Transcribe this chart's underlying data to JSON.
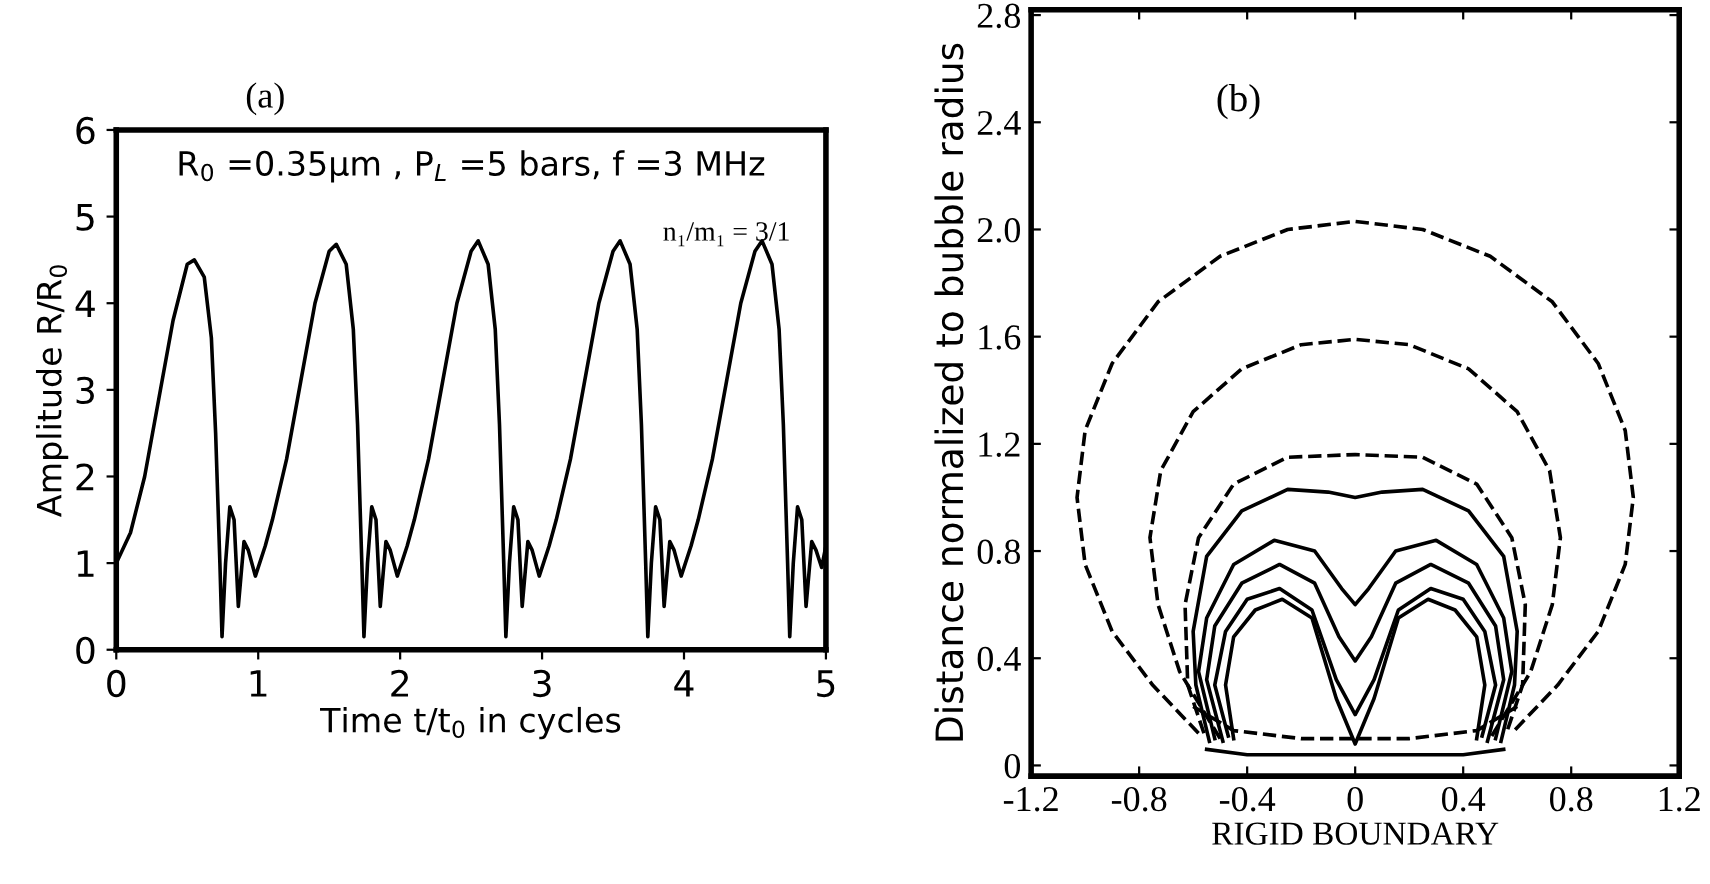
{
  "chart_data": [
    {
      "type": "line",
      "xlabel": "Time t/t$_{0}$ in cycles",
      "ylabel": "Amplitude R/R$_{0}$",
      "annotations": [
        "(a)",
        "R$_{0}$ =0.35μm , P$_{L}$ =5 bars, f =3 MHz",
        "n₁/m₁ = 3/1"
      ],
      "xlim": [
        0,
        5
      ],
      "ylim": [
        0,
        6
      ],
      "xticks": [
        0,
        1,
        2,
        3,
        4,
        5
      ],
      "yticks": [
        0,
        1,
        2,
        3,
        4,
        5,
        6
      ],
      "grid": false,
      "line_style": "solid",
      "series": [
        {
          "color": "#000000",
          "x": [
            0,
            0.1,
            0.2,
            0.3,
            0.4,
            0.5,
            0.55,
            0.62,
            0.67,
            0.7,
            0.73,
            0.745,
            0.77,
            0.8,
            0.83,
            0.86,
            0.9,
            0.93,
            0.98,
            1.05,
            1.1,
            1.2,
            1.3,
            1.4,
            1.5,
            1.55,
            1.62,
            1.67,
            1.7,
            1.73,
            1.745,
            1.77,
            1.8,
            1.83,
            1.86,
            1.9,
            1.93,
            1.98,
            2.05,
            2.1,
            2.2,
            2.3,
            2.4,
            2.5,
            2.55,
            2.62,
            2.67,
            2.7,
            2.73,
            2.745,
            2.77,
            2.8,
            2.83,
            2.86,
            2.9,
            2.93,
            2.98,
            3.05,
            3.1,
            3.2,
            3.3,
            3.4,
            3.5,
            3.55,
            3.62,
            3.67,
            3.7,
            3.73,
            3.745,
            3.77,
            3.8,
            3.83,
            3.86,
            3.9,
            3.93,
            3.98,
            4.05,
            4.1,
            4.2,
            4.3,
            4.4,
            4.5,
            4.55,
            4.62,
            4.67,
            4.7,
            4.73,
            4.745,
            4.77,
            4.8,
            4.83,
            4.86,
            4.9,
            4.93,
            4.97,
            5.0
          ],
          "values": [
            1.0,
            1.35,
            2.0,
            2.9,
            3.8,
            4.45,
            4.5,
            4.3,
            3.6,
            2.5,
            1.0,
            0.15,
            1.0,
            1.65,
            1.5,
            0.5,
            1.25,
            1.15,
            0.85,
            1.2,
            1.5,
            2.2,
            3.1,
            4.0,
            4.6,
            4.68,
            4.45,
            3.7,
            2.6,
            1.0,
            0.15,
            1.0,
            1.65,
            1.5,
            0.5,
            1.25,
            1.15,
            0.85,
            1.2,
            1.5,
            2.2,
            3.1,
            4.0,
            4.6,
            4.72,
            4.45,
            3.7,
            2.6,
            1.0,
            0.15,
            1.0,
            1.65,
            1.5,
            0.5,
            1.25,
            1.15,
            0.85,
            1.2,
            1.5,
            2.2,
            3.1,
            4.0,
            4.6,
            4.72,
            4.45,
            3.7,
            2.6,
            1.0,
            0.15,
            1.0,
            1.65,
            1.5,
            0.5,
            1.25,
            1.15,
            0.85,
            1.2,
            1.5,
            2.2,
            3.1,
            4.0,
            4.6,
            4.72,
            4.45,
            3.7,
            2.6,
            1.0,
            0.15,
            1.0,
            1.65,
            1.5,
            0.5,
            1.25,
            1.15,
            0.95,
            1.2
          ]
        }
      ]
    },
    {
      "type": "line",
      "xlabel": "RIGID BOUNDARY",
      "ylabel": "Distance normalized to bubble radius",
      "annotations": [
        "(b)"
      ],
      "xlim": [
        -1.2,
        1.2
      ],
      "ylim": [
        -0.04,
        2.82
      ],
      "xticks": [
        {
          "value": -1.2,
          "label": "-1.2"
        },
        {
          "value": -0.8,
          "label": "-0.8"
        },
        {
          "value": -0.4,
          "label": "-0.4"
        },
        0,
        0.4,
        0.8,
        1.2
      ],
      "yticks": [
        0,
        0.4,
        0.8,
        1.2,
        1.6,
        {
          "value": 2,
          "label": "2.0"
        },
        2.4,
        2.8
      ],
      "grid": false,
      "series": [
        {
          "color": "#000000",
          "line_style": "dashed",
          "x": [
            -0.58,
            -0.75,
            -0.9,
            -1.0,
            -1.03,
            -1.0,
            -0.9,
            -0.73,
            -0.5,
            -0.25,
            0,
            0.25,
            0.5,
            0.73,
            0.9,
            1.0,
            1.03,
            1.0,
            0.9,
            0.75,
            0.58
          ],
          "values": [
            0.12,
            0.3,
            0.5,
            0.75,
            1.0,
            1.25,
            1.5,
            1.73,
            1.9,
            2.0,
            2.03,
            2.0,
            1.9,
            1.73,
            1.5,
            1.25,
            1.0,
            0.75,
            0.5,
            0.3,
            0.12
          ]
        },
        {
          "color": "#000000",
          "line_style": "dashed",
          "x": [
            -0.5,
            -0.65,
            -0.73,
            -0.76,
            -0.72,
            -0.6,
            -0.42,
            -0.2,
            0,
            0.2,
            0.42,
            0.6,
            0.72,
            0.76,
            0.73,
            0.65,
            0.5
          ],
          "values": [
            0.1,
            0.35,
            0.6,
            0.85,
            1.1,
            1.32,
            1.48,
            1.57,
            1.59,
            1.57,
            1.48,
            1.32,
            1.1,
            0.85,
            0.6,
            0.35,
            0.1
          ]
        },
        {
          "color": "#000000",
          "line_style": "dashed",
          "x": [
            -0.56,
            -0.62,
            -0.63,
            -0.58,
            -0.45,
            -0.25,
            0,
            0.25,
            0.45,
            0.58,
            0.63,
            0.62,
            0.56
          ],
          "values": [
            0.12,
            0.3,
            0.6,
            0.85,
            1.05,
            1.15,
            1.16,
            1.15,
            1.05,
            0.85,
            0.6,
            0.3,
            0.12
          ]
        },
        {
          "color": "#000000",
          "line_style": "solid",
          "x": [
            -0.54,
            -0.59,
            -0.6,
            -0.55,
            -0.42,
            -0.25,
            -0.1,
            0,
            0.1,
            0.25,
            0.42,
            0.55,
            0.6,
            0.59,
            0.54
          ],
          "values": [
            0.09,
            0.3,
            0.5,
            0.78,
            0.95,
            1.03,
            1.02,
            1.0,
            1.02,
            1.03,
            0.95,
            0.78,
            0.5,
            0.3,
            0.09
          ]
        },
        {
          "color": "#000000",
          "line_style": "solid",
          "x": [
            -0.52,
            -0.58,
            -0.55,
            -0.45,
            -0.3,
            -0.15,
            -0.05,
            0,
            0.05,
            0.15,
            0.3,
            0.45,
            0.55,
            0.58,
            0.52
          ],
          "values": [
            0.1,
            0.35,
            0.55,
            0.75,
            0.84,
            0.8,
            0.66,
            0.6,
            0.66,
            0.8,
            0.84,
            0.75,
            0.55,
            0.35,
            0.1
          ]
        },
        {
          "color": "#000000",
          "line_style": "solid",
          "x": [
            -0.49,
            -0.55,
            -0.52,
            -0.42,
            -0.28,
            -0.15,
            -0.06,
            0,
            0.06,
            0.15,
            0.28,
            0.42,
            0.52,
            0.55,
            0.49
          ],
          "values": [
            0.09,
            0.32,
            0.52,
            0.68,
            0.75,
            0.68,
            0.48,
            0.39,
            0.48,
            0.68,
            0.75,
            0.68,
            0.52,
            0.32,
            0.09
          ]
        },
        {
          "color": "#000000",
          "line_style": "solid",
          "x": [
            -0.47,
            -0.52,
            -0.48,
            -0.4,
            -0.28,
            -0.16,
            -0.07,
            0,
            0.07,
            0.16,
            0.28,
            0.4,
            0.48,
            0.52,
            0.47
          ],
          "values": [
            0.11,
            0.3,
            0.5,
            0.62,
            0.66,
            0.58,
            0.32,
            0.19,
            0.32,
            0.58,
            0.66,
            0.62,
            0.5,
            0.3,
            0.11
          ]
        },
        {
          "color": "#000000",
          "line_style": "solid",
          "x": [
            -0.45,
            -0.48,
            -0.45,
            -0.37,
            -0.27,
            -0.16,
            -0.07,
            0,
            0.07,
            0.16,
            0.27,
            0.37,
            0.45,
            0.48,
            0.45
          ],
          "values": [
            0.1,
            0.3,
            0.48,
            0.58,
            0.62,
            0.55,
            0.25,
            0.08,
            0.25,
            0.55,
            0.62,
            0.58,
            0.48,
            0.3,
            0.1
          ]
        },
        {
          "color": "#000000",
          "line_style": "dashed",
          "x": [
            -0.6,
            -0.45,
            -0.2,
            0,
            0.2,
            0.45,
            0.6
          ],
          "values": [
            0.22,
            0.13,
            0.1,
            0.1,
            0.1,
            0.13,
            0.22
          ]
        },
        {
          "color": "#000000",
          "line_style": "solid",
          "x": [
            -0.55,
            -0.4,
            0,
            0.4,
            0.55
          ],
          "values": [
            0.06,
            0.04,
            0.04,
            0.04,
            0.06
          ]
        }
      ]
    }
  ]
}
